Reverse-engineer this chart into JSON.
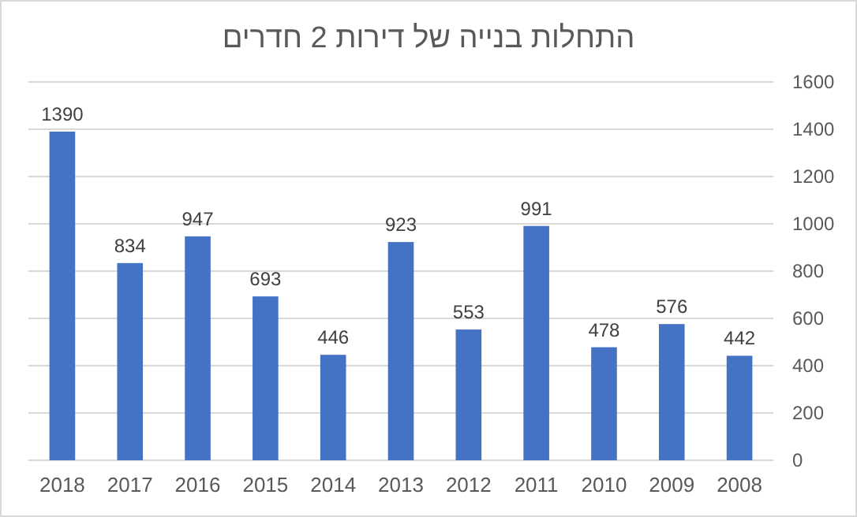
{
  "chart_data": {
    "type": "bar",
    "title": "התחלות בנייה של דירות 2 חדרים",
    "categories": [
      "2018",
      "2017",
      "2016",
      "2015",
      "2014",
      "2013",
      "2012",
      "2011",
      "2010",
      "2009",
      "2008"
    ],
    "values": [
      1390,
      834,
      947,
      693,
      446,
      923,
      553,
      991,
      478,
      576,
      442
    ],
    "color": "#4472c4",
    "ylim": [
      0,
      1600
    ],
    "yticks": [
      0,
      200,
      400,
      600,
      800,
      1000,
      1200,
      1400,
      1600
    ],
    "grid": "y",
    "data_labels": true
  }
}
